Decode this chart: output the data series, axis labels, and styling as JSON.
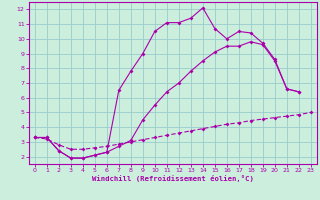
{
  "bg_color": "#cceedd",
  "grid_color": "#99cccc",
  "line_color": "#aa00aa",
  "xlabel": "Windchill (Refroidissement éolien,°C)",
  "xlim": [
    -0.5,
    23.5
  ],
  "ylim": [
    1.5,
    12.5
  ],
  "xticks": [
    0,
    1,
    2,
    3,
    4,
    5,
    6,
    7,
    8,
    9,
    10,
    11,
    12,
    13,
    14,
    15,
    16,
    17,
    18,
    19,
    20,
    21,
    22,
    23
  ],
  "yticks": [
    2,
    3,
    4,
    5,
    6,
    7,
    8,
    9,
    10,
    11,
    12
  ],
  "line1_x": [
    0,
    1,
    2,
    3,
    4,
    5,
    6,
    7,
    8,
    9,
    10,
    11,
    12,
    13,
    14,
    15,
    16,
    17,
    18,
    19,
    20,
    21,
    22
  ],
  "line1_y": [
    3.3,
    3.3,
    2.4,
    1.9,
    1.9,
    2.1,
    2.3,
    6.5,
    7.8,
    9.0,
    10.5,
    11.1,
    11.1,
    11.4,
    12.1,
    10.7,
    10.0,
    10.5,
    10.4,
    9.7,
    8.6,
    6.6,
    6.4
  ],
  "line2_x": [
    0,
    1,
    2,
    3,
    4,
    5,
    6,
    7,
    8,
    9,
    10,
    11,
    12,
    13,
    14,
    15,
    16,
    17,
    18,
    19,
    20,
    21,
    22
  ],
  "line2_y": [
    3.3,
    3.3,
    2.4,
    1.9,
    1.9,
    2.1,
    2.3,
    2.7,
    3.1,
    4.5,
    5.5,
    6.4,
    7.0,
    7.8,
    8.5,
    9.1,
    9.5,
    9.5,
    9.8,
    9.6,
    8.5,
    6.6,
    6.4
  ],
  "line3_x": [
    0,
    1,
    2,
    3,
    4,
    5,
    6,
    7,
    8,
    9,
    10,
    11,
    12,
    13,
    14,
    15,
    16,
    17,
    18,
    19,
    20,
    21,
    22,
    23
  ],
  "line3_y": [
    3.3,
    3.2,
    2.8,
    2.5,
    2.5,
    2.6,
    2.7,
    2.85,
    3.0,
    3.15,
    3.3,
    3.45,
    3.6,
    3.75,
    3.9,
    4.05,
    4.2,
    4.3,
    4.45,
    4.55,
    4.65,
    4.75,
    4.85,
    5.0
  ]
}
